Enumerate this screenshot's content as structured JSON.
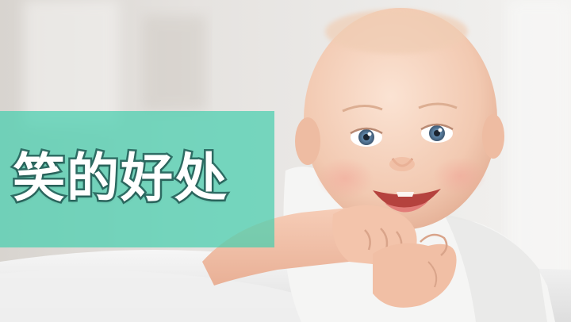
{
  "banner": {
    "title": "笑的好处",
    "color": "#48ceae"
  },
  "photo": {
    "subject": "smiling-baby-photo"
  }
}
